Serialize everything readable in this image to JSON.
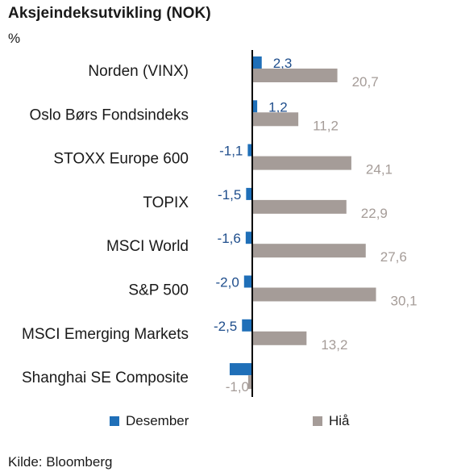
{
  "chart_data": {
    "type": "bar",
    "orientation": "horizontal",
    "title": "Aksjeindeksutvikling (NOK)",
    "ylabel": "%",
    "categories": [
      "Norden (VINX)",
      "Oslo Børs Fondsindeks",
      "STOXX Europe 600",
      "TOPIX",
      "MSCI World",
      "S&P 500",
      "MSCI Emerging Markets",
      "Shanghai SE Composite"
    ],
    "series": [
      {
        "name": "Desember",
        "color": "#1f6fb8",
        "label_color": "#1f4e8c",
        "values": [
          2.3,
          1.2,
          -1.1,
          -1.5,
          -1.6,
          -2.0,
          -2.5,
          -5.5
        ],
        "labels": [
          "2,3",
          "1,2",
          "-1,1",
          "-1,5",
          "-1,6",
          "-2,0",
          "-2,5",
          ""
        ]
      },
      {
        "name": "Hiå",
        "color": "#a59c98",
        "label_color": "#a59c98",
        "values": [
          20.7,
          11.2,
          24.1,
          22.9,
          27.6,
          30.1,
          13.2,
          -1.0
        ],
        "labels": [
          "20,7",
          "11,2",
          "24,1",
          "22,9",
          "27,6",
          "30,1",
          "13,2",
          "-1,0"
        ]
      }
    ],
    "xlim": [
      -6,
      36
    ],
    "grid": false,
    "legend_position": "bottom",
    "source": "Kilde: Bloomberg"
  }
}
